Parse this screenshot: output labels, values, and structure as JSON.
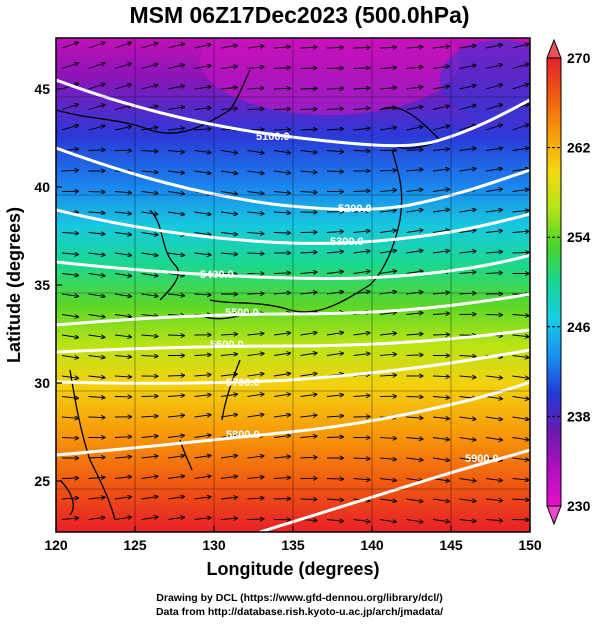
{
  "title": "MSM 06Z17Dec2023 (500.0hPa)",
  "xaxis": {
    "label": "Longitude (degrees)",
    "ticks": [
      "120",
      "125",
      "130",
      "135",
      "140",
      "145",
      "150"
    ],
    "range": [
      120,
      150
    ]
  },
  "yaxis": {
    "label": "Latitude  (degrees)",
    "ticks": [
      "25",
      "30",
      "35",
      "40",
      "45"
    ],
    "range": [
      22.4,
      47.6
    ]
  },
  "colorbar": {
    "labels": [
      "270",
      "262",
      "254",
      "246",
      "238",
      "230"
    ],
    "range": [
      230,
      270
    ],
    "colors_top_to_bottom": [
      "#e8202a",
      "#f05a10",
      "#f89a08",
      "#f6d80e",
      "#b6e616",
      "#4cd428",
      "#17d890",
      "#16cde8",
      "#1a8ef0",
      "#2338d8",
      "#6a1ab0",
      "#b40ec0",
      "#e410c8"
    ]
  },
  "contours": [
    {
      "label": "5100.0"
    },
    {
      "label": "5200.0"
    },
    {
      "label": "5300.0"
    },
    {
      "label": "5400.0"
    },
    {
      "label": "5500.0"
    },
    {
      "label": "5600.0"
    },
    {
      "label": "5700.0"
    },
    {
      "label": "5800.0"
    },
    {
      "label": "5900.0"
    }
  ],
  "credits": {
    "line1": "Drawing by DCL (https://www.gfd-dennou.org/library/dcl/)",
    "line2": "Data from http://database.rish.kyoto-u.ac.jp/arch/jmadata/"
  }
}
